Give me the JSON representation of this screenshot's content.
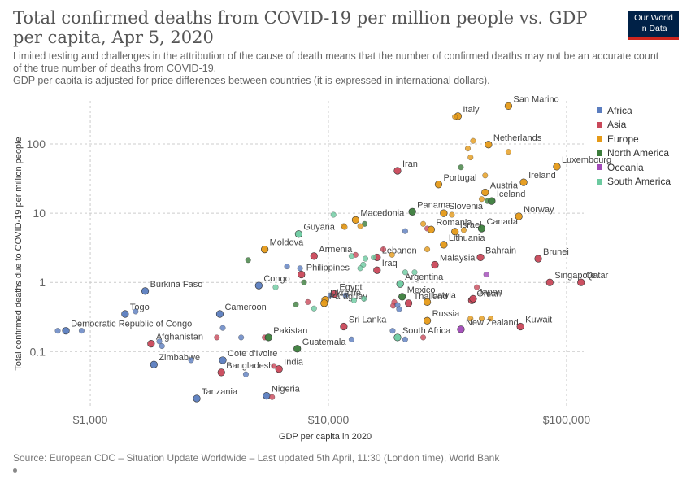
{
  "header": {
    "title": "Total confirmed deaths from COVID-19 per million people vs. GDP per capita, Apr 5, 2020",
    "subtitle_line1": "Limited testing and challenges in the attribution of the cause of death means that the number of confirmed deaths may not be an accurate count of the true number of deaths from COVID-19.",
    "subtitle_line2": "GDP per capita is adjusted for price differences between countries (it is expressed in international dollars).",
    "logo_line1": "Our World",
    "logo_line2": "in Data"
  },
  "footer": {
    "source": "Source: European CDC – Situation Update Worldwide – Last updated 5th April, 11:30 (London time), World Bank"
  },
  "colors": {
    "Africa": "#5b7dbf",
    "Asia": "#c9485a",
    "Europe": "#e59a18",
    "North America": "#3c7d3c",
    "Oceania": "#a149b8",
    "South America": "#6ccaa0"
  },
  "chart_data": {
    "type": "scatter",
    "title": "Total confirmed deaths from COVID-19 per million people vs. GDP per capita, Apr 5, 2020",
    "xlabel": "GDP per capita in 2020",
    "ylabel": "Total confirmed deaths due to COVID-19 per million people",
    "xscale": "log",
    "yscale": "log",
    "xlim": [
      680,
      118000
    ],
    "ylim": [
      0.016,
      420
    ],
    "xticks": [
      1000,
      10000,
      100000
    ],
    "xticklabels": [
      "$1,000",
      "$10,000",
      "$100,000"
    ],
    "yticks": [
      0.1,
      1,
      10,
      100
    ],
    "yticklabels": [
      "0.1",
      "1",
      "10",
      "100"
    ],
    "grid": true,
    "legend_position": "right",
    "legend": [
      "Africa",
      "Asia",
      "Europe",
      "North America",
      "Oceania",
      "South America"
    ],
    "points": [
      {
        "x": 57000,
        "y": 353,
        "c": "Europe",
        "label": "San Marino"
      },
      {
        "x": 35000,
        "y": 252,
        "c": "Europe",
        "label": "Italy"
      },
      {
        "x": 34000,
        "y": 247,
        "c": "Europe",
        "label": ""
      },
      {
        "x": 47000,
        "y": 98,
        "c": "Europe",
        "label": "Netherlands"
      },
      {
        "x": 40500,
        "y": 111,
        "c": "Europe",
        "label": ""
      },
      {
        "x": 38500,
        "y": 86,
        "c": "Europe",
        "label": ""
      },
      {
        "x": 39500,
        "y": 64,
        "c": "Europe",
        "label": ""
      },
      {
        "x": 57000,
        "y": 77,
        "c": "Europe",
        "label": ""
      },
      {
        "x": 91000,
        "y": 47,
        "c": "Europe",
        "label": "Luxembourg"
      },
      {
        "x": 19500,
        "y": 41,
        "c": "Asia",
        "label": "Iran"
      },
      {
        "x": 36000,
        "y": 46,
        "c": "North America",
        "label": ""
      },
      {
        "x": 45500,
        "y": 35,
        "c": "Europe",
        "label": ""
      },
      {
        "x": 66000,
        "y": 28,
        "c": "Europe",
        "label": "Ireland"
      },
      {
        "x": 29000,
        "y": 26,
        "c": "Europe",
        "label": "Portugal"
      },
      {
        "x": 45500,
        "y": 20,
        "c": "Europe",
        "label": "Austria"
      },
      {
        "x": 44000,
        "y": 16,
        "c": "Europe",
        "label": ""
      },
      {
        "x": 46500,
        "y": 15,
        "c": "North America",
        "label": ""
      },
      {
        "x": 48500,
        "y": 15,
        "c": "North America",
        "label": "Iceland"
      },
      {
        "x": 10500,
        "y": 9.5,
        "c": "South America",
        "label": ""
      },
      {
        "x": 22500,
        "y": 10.5,
        "c": "North America",
        "label": "Panama"
      },
      {
        "x": 30500,
        "y": 10,
        "c": "Europe",
        "label": "Slovenia"
      },
      {
        "x": 33000,
        "y": 9.5,
        "c": "Europe",
        "label": ""
      },
      {
        "x": 63000,
        "y": 9,
        "c": "Europe",
        "label": "Norway"
      },
      {
        "x": 13000,
        "y": 8,
        "c": "Europe",
        "label": "Macedonia"
      },
      {
        "x": 14200,
        "y": 7,
        "c": "North America",
        "label": ""
      },
      {
        "x": 13600,
        "y": 6.5,
        "c": "Europe",
        "label": ""
      },
      {
        "x": 11600,
        "y": 6.5,
        "c": "Europe",
        "label": ""
      },
      {
        "x": 11700,
        "y": 6.3,
        "c": "Europe",
        "label": ""
      },
      {
        "x": 25000,
        "y": 7,
        "c": "Europe",
        "label": ""
      },
      {
        "x": 26000,
        "y": 6,
        "c": "Asia",
        "label": ""
      },
      {
        "x": 27000,
        "y": 5.8,
        "c": "Europe",
        "label": "Romania"
      },
      {
        "x": 21000,
        "y": 5.5,
        "c": "Africa",
        "label": ""
      },
      {
        "x": 34000,
        "y": 5.4,
        "c": "Europe",
        "label": "Israel"
      },
      {
        "x": 37000,
        "y": 5.7,
        "c": "Europe",
        "label": ""
      },
      {
        "x": 44000,
        "y": 6,
        "c": "North America",
        "label": "Canada"
      },
      {
        "x": 7500,
        "y": 5,
        "c": "South America",
        "label": "Guyana"
      },
      {
        "x": 30500,
        "y": 3.5,
        "c": "Europe",
        "label": "Lithuania"
      },
      {
        "x": 26000,
        "y": 3,
        "c": "Europe",
        "label": ""
      },
      {
        "x": 5400,
        "y": 3,
        "c": "Europe",
        "label": "Moldova"
      },
      {
        "x": 4600,
        "y": 2.1,
        "c": "North America",
        "label": ""
      },
      {
        "x": 8700,
        "y": 2.4,
        "c": "Asia",
        "label": "Armenia"
      },
      {
        "x": 13000,
        "y": 2.5,
        "c": "Asia",
        "label": ""
      },
      {
        "x": 16000,
        "y": 2.3,
        "c": "Asia",
        "label": "Lebanon"
      },
      {
        "x": 12500,
        "y": 2.4,
        "c": "South America",
        "label": ""
      },
      {
        "x": 14300,
        "y": 2.2,
        "c": "South America",
        "label": ""
      },
      {
        "x": 15500,
        "y": 2.3,
        "c": "South America",
        "label": ""
      },
      {
        "x": 17000,
        "y": 3,
        "c": "Asia",
        "label": ""
      },
      {
        "x": 18500,
        "y": 2.5,
        "c": "Europe",
        "label": ""
      },
      {
        "x": 14000,
        "y": 1.8,
        "c": "South America",
        "label": ""
      },
      {
        "x": 13600,
        "y": 1.6,
        "c": "South America",
        "label": ""
      },
      {
        "x": 16000,
        "y": 1.5,
        "c": "Asia",
        "label": "Iraq"
      },
      {
        "x": 28000,
        "y": 1.8,
        "c": "Asia",
        "label": "Malaysia"
      },
      {
        "x": 43500,
        "y": 2.3,
        "c": "Asia",
        "label": "Bahrain"
      },
      {
        "x": 76000,
        "y": 2.2,
        "c": "Asia",
        "label": "Brunei"
      },
      {
        "x": 6700,
        "y": 1.7,
        "c": "Africa",
        "label": ""
      },
      {
        "x": 7600,
        "y": 1.6,
        "c": "Africa",
        "label": ""
      },
      {
        "x": 7700,
        "y": 1.3,
        "c": "Asia",
        "label": "Philippines"
      },
      {
        "x": 5100,
        "y": 0.9,
        "c": "Africa",
        "label": "Congo"
      },
      {
        "x": 6000,
        "y": 0.85,
        "c": "South America",
        "label": ""
      },
      {
        "x": 7900,
        "y": 1,
        "c": "North America",
        "label": ""
      },
      {
        "x": 20000,
        "y": 0.95,
        "c": "South America",
        "label": "Argentina"
      },
      {
        "x": 21000,
        "y": 1.4,
        "c": "South America",
        "label": ""
      },
      {
        "x": 23000,
        "y": 1.4,
        "c": "South America",
        "label": ""
      },
      {
        "x": 46000,
        "y": 1.3,
        "c": "Oceania",
        "label": ""
      },
      {
        "x": 85000,
        "y": 1,
        "c": "Asia",
        "label": "Singapore"
      },
      {
        "x": 115000,
        "y": 1,
        "c": "Asia",
        "label": "Qatar"
      },
      {
        "x": 1700,
        "y": 0.75,
        "c": "Africa",
        "label": "Burkina Faso"
      },
      {
        "x": 10200,
        "y": 0.65,
        "c": "Africa",
        "label": ""
      },
      {
        "x": 10600,
        "y": 0.68,
        "c": "Asia",
        "label": "Egypt"
      },
      {
        "x": 11800,
        "y": 0.65,
        "c": "Africa",
        "label": ""
      },
      {
        "x": 9700,
        "y": 0.56,
        "c": "Europe",
        "label": "Ukraine"
      },
      {
        "x": 8200,
        "y": 0.52,
        "c": "Asia",
        "label": ""
      },
      {
        "x": 7300,
        "y": 0.48,
        "c": "North America",
        "label": ""
      },
      {
        "x": 9600,
        "y": 0.5,
        "c": "Europe",
        "label": "Paraguay"
      },
      {
        "x": 8700,
        "y": 0.42,
        "c": "South America",
        "label": ""
      },
      {
        "x": 12800,
        "y": 0.55,
        "c": "South America",
        "label": ""
      },
      {
        "x": 14100,
        "y": 0.58,
        "c": "South America",
        "label": ""
      },
      {
        "x": 20400,
        "y": 0.62,
        "c": "North America",
        "label": "Mexico"
      },
      {
        "x": 18900,
        "y": 0.52,
        "c": "Asia",
        "label": ""
      },
      {
        "x": 18700,
        "y": 0.46,
        "c": "Asia",
        "label": ""
      },
      {
        "x": 19500,
        "y": 0.47,
        "c": "Africa",
        "label": ""
      },
      {
        "x": 19800,
        "y": 0.41,
        "c": "Africa",
        "label": ""
      },
      {
        "x": 21700,
        "y": 0.5,
        "c": "Asia",
        "label": "Thailand"
      },
      {
        "x": 26000,
        "y": 0.52,
        "c": "Europe",
        "label": "Latvia"
      },
      {
        "x": 40000,
        "y": 0.55,
        "c": "Asia",
        "label": "Oman"
      },
      {
        "x": 40500,
        "y": 0.58,
        "c": "Asia",
        "label": "Japan"
      },
      {
        "x": 42000,
        "y": 0.85,
        "c": "Asia",
        "label": ""
      },
      {
        "x": 1400,
        "y": 0.35,
        "c": "Africa",
        "label": "Togo"
      },
      {
        "x": 1550,
        "y": 0.38,
        "c": "Africa",
        "label": ""
      },
      {
        "x": 3500,
        "y": 0.35,
        "c": "Africa",
        "label": "Cameroon"
      },
      {
        "x": 26000,
        "y": 0.28,
        "c": "Europe",
        "label": "Russia"
      },
      {
        "x": 39500,
        "y": 0.3,
        "c": "Europe",
        "label": ""
      },
      {
        "x": 44000,
        "y": 0.3,
        "c": "Europe",
        "label": ""
      },
      {
        "x": 48000,
        "y": 0.3,
        "c": "Europe",
        "label": ""
      },
      {
        "x": 730,
        "y": 0.2,
        "c": "Africa",
        "label": ""
      },
      {
        "x": 790,
        "y": 0.2,
        "c": "Africa",
        "label": "Democratic Republic of Congo"
      },
      {
        "x": 920,
        "y": 0.2,
        "c": "Africa",
        "label": ""
      },
      {
        "x": 3600,
        "y": 0.22,
        "c": "Africa",
        "label": ""
      },
      {
        "x": 11600,
        "y": 0.23,
        "c": "Asia",
        "label": "Sri Lanka"
      },
      {
        "x": 18600,
        "y": 0.2,
        "c": "Africa",
        "label": ""
      },
      {
        "x": 36000,
        "y": 0.21,
        "c": "Oceania",
        "label": "New Zealand"
      },
      {
        "x": 64000,
        "y": 0.23,
        "c": "Asia",
        "label": "Kuwait"
      },
      {
        "x": 1800,
        "y": 0.13,
        "c": "Asia",
        "label": "Afghanistan"
      },
      {
        "x": 1950,
        "y": 0.14,
        "c": "Africa",
        "label": ""
      },
      {
        "x": 3400,
        "y": 0.16,
        "c": "Asia",
        "label": ""
      },
      {
        "x": 4300,
        "y": 0.16,
        "c": "Africa",
        "label": ""
      },
      {
        "x": 5400,
        "y": 0.16,
        "c": "Asia",
        "label": ""
      },
      {
        "x": 5600,
        "y": 0.16,
        "c": "North America",
        "label": "Pakistan"
      },
      {
        "x": 12500,
        "y": 0.15,
        "c": "Africa",
        "label": ""
      },
      {
        "x": 19500,
        "y": 0.16,
        "c": "South America",
        "label": "South Africa"
      },
      {
        "x": 21000,
        "y": 0.15,
        "c": "Africa",
        "label": ""
      },
      {
        "x": 25000,
        "y": 0.16,
        "c": "Asia",
        "label": ""
      },
      {
        "x": 2000,
        "y": 0.12,
        "c": "Africa",
        "label": ""
      },
      {
        "x": 7400,
        "y": 0.11,
        "c": "North America",
        "label": "Guatemala"
      },
      {
        "x": 1850,
        "y": 0.065,
        "c": "Africa",
        "label": "Zimbabwe"
      },
      {
        "x": 2650,
        "y": 0.075,
        "c": "Africa",
        "label": ""
      },
      {
        "x": 3600,
        "y": 0.075,
        "c": "Africa",
        "label": "Cote d'Ivoire"
      },
      {
        "x": 3550,
        "y": 0.05,
        "c": "Asia",
        "label": "Bangladesh"
      },
      {
        "x": 4500,
        "y": 0.047,
        "c": "Africa",
        "label": ""
      },
      {
        "x": 5900,
        "y": 0.062,
        "c": "Asia",
        "label": ""
      },
      {
        "x": 6200,
        "y": 0.056,
        "c": "Asia",
        "label": "India"
      },
      {
        "x": 2800,
        "y": 0.021,
        "c": "Africa",
        "label": "Tanzania"
      },
      {
        "x": 5500,
        "y": 0.023,
        "c": "Africa",
        "label": "Nigeria"
      },
      {
        "x": 5800,
        "y": 0.022,
        "c": "Asia",
        "label": ""
      }
    ]
  }
}
